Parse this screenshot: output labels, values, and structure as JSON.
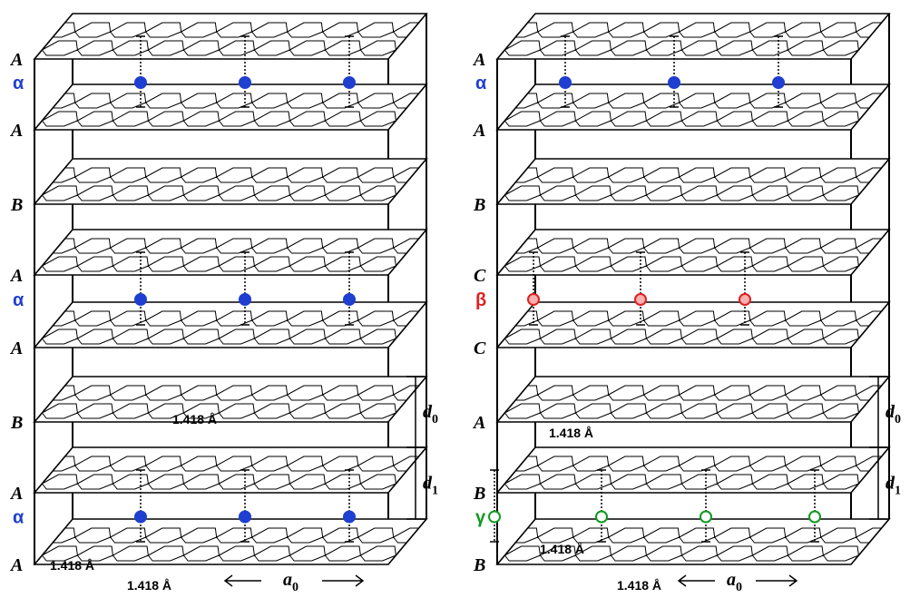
{
  "panels": [
    {
      "layers": [
        "A",
        "A",
        "B",
        "A",
        "A",
        "B",
        "A",
        "A"
      ],
      "ions": [
        {
          "label": "α",
          "color": "#1f3fd0",
          "style": "filled"
        },
        {
          "label": "α",
          "color": "#1f3fd0",
          "style": "filled"
        },
        {
          "label": "α",
          "color": "#1f3fd0",
          "style": "filled"
        }
      ],
      "bond_labels": [
        "1.418 Å",
        "1.418 Å",
        "1.418 Å"
      ],
      "d0": {
        "symbol": "d",
        "subscript": "0"
      },
      "d1": {
        "symbol": "d",
        "subscript": "1"
      },
      "a0": {
        "symbol": "a",
        "subscript": "0"
      }
    },
    {
      "layers": [
        "A",
        "A",
        "B",
        "C",
        "C",
        "A",
        "B",
        "B"
      ],
      "ions": [
        {
          "label": "α",
          "color": "#1f3fd0",
          "style": "filled"
        },
        {
          "label": "β",
          "color": "#e02020",
          "style": "hatched"
        },
        {
          "label": "γ",
          "color": "#109a20",
          "style": "open"
        }
      ],
      "bond_labels": [
        "1.418 Å",
        "1.418 Å",
        "1.418 Å"
      ],
      "d0": {
        "symbol": "d",
        "subscript": "0"
      },
      "d1": {
        "symbol": "d",
        "subscript": "1"
      },
      "a0": {
        "symbol": "a",
        "subscript": "0"
      }
    }
  ]
}
